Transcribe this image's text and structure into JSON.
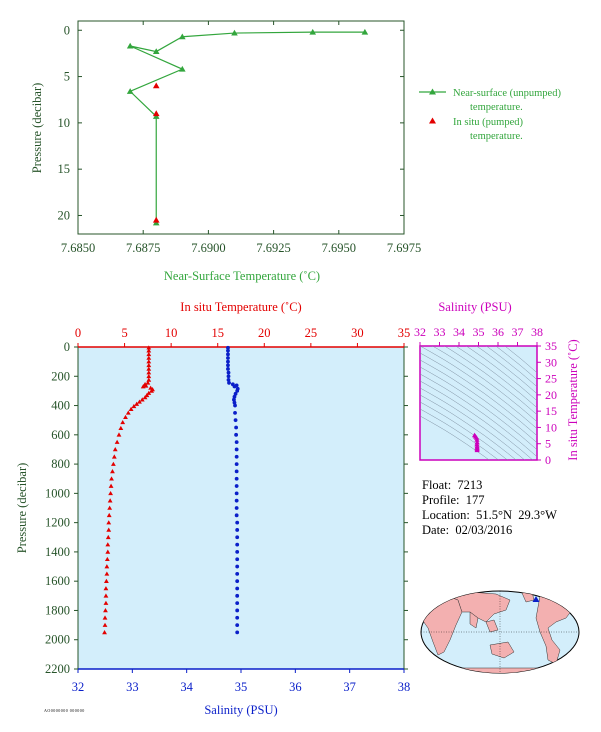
{
  "colors": {
    "green": "#33a63d",
    "axis_green": "#27542a",
    "red": "#e30000",
    "blue": "#0a1fc9",
    "magenta": "#cc00bb",
    "plot_bg": "#d3eefb",
    "land": "#f3b0b0",
    "ocean": "#d3eefb"
  },
  "info": {
    "float_label": "Float:",
    "float": "7213",
    "profile_label": "Profile:",
    "profile": "177",
    "location_label": "Location:",
    "location": "51.5°N  29.3°W",
    "date_label": "Date:",
    "date": "02/03/2016"
  },
  "tag": "AO0000000 000000",
  "chart_data": [
    {
      "id": "near-surface",
      "type": "line",
      "xlabel": "Near-Surface Temperature (˚C)",
      "ylabel": "Pressure (decibar)",
      "xlim": [
        7.685,
        7.6975
      ],
      "ylim": [
        22,
        -1
      ],
      "xticks": [
        7.685,
        7.6875,
        7.69,
        7.6925,
        7.695,
        7.6975
      ],
      "xtick_labels": [
        "7.6850",
        "7.6875",
        "7.6900",
        "7.6925",
        "7.6950",
        "7.6975"
      ],
      "yticks": [
        0,
        5,
        10,
        15,
        20
      ],
      "yticks_labels": [
        "0",
        "5",
        "10",
        "15",
        "20"
      ],
      "legend": [
        {
          "label_line1": "Near-surface (unpumped)",
          "label_line2": "temperature."
        },
        {
          "label_line1": "In situ (pumped)",
          "label_line2": "temperature."
        }
      ],
      "series": [
        {
          "name": "Near-surface (unpumped) temperature.",
          "marker": "triangle",
          "points": [
            [
              7.696,
              0.2
            ],
            [
              7.694,
              0.2
            ],
            [
              7.691,
              0.3
            ],
            [
              7.689,
              0.7
            ],
            [
              7.688,
              2.3
            ],
            [
              7.687,
              1.7
            ],
            [
              7.689,
              4.2
            ],
            [
              7.687,
              6.6
            ],
            [
              7.688,
              9.3
            ],
            [
              7.688,
              20.8
            ]
          ]
        },
        {
          "name": "In situ (pumped) temperature.",
          "marker": "triangle",
          "points": [
            [
              7.688,
              6.0
            ],
            [
              7.688,
              9.0
            ],
            [
              7.688,
              20.5
            ]
          ]
        }
      ]
    },
    {
      "id": "profile",
      "type": "scatter",
      "top_xlabel": "In situ Temperature (˚C)",
      "bottom_xlabel": "Salinity (PSU)",
      "ylabel": "Pressure (decibar)",
      "temp_lim": [
        0,
        35
      ],
      "sal_lim": [
        32,
        38
      ],
      "ylim": [
        2200,
        0
      ],
      "temp_ticks": [
        "0",
        "5",
        "10",
        "15",
        "20",
        "25",
        "30",
        "35"
      ],
      "sal_ticks": [
        "32",
        "33",
        "34",
        "35",
        "36",
        "37",
        "38"
      ],
      "y_ticks": [
        "0",
        "200",
        "400",
        "600",
        "800",
        "1000",
        "1200",
        "1400",
        "1600",
        "1800",
        "2000",
        "2200"
      ],
      "temperature_profile": [
        [
          7.6,
          5
        ],
        [
          7.6,
          25
        ],
        [
          7.6,
          50
        ],
        [
          7.6,
          75
        ],
        [
          7.6,
          100
        ],
        [
          7.6,
          125
        ],
        [
          7.6,
          150
        ],
        [
          7.6,
          175
        ],
        [
          7.6,
          200
        ],
        [
          7.6,
          225
        ],
        [
          7.5,
          245
        ],
        [
          7.2,
          255
        ],
        [
          7.3,
          265
        ],
        [
          7.0,
          270
        ],
        [
          7.8,
          280
        ],
        [
          8.0,
          290
        ],
        [
          7.9,
          300
        ],
        [
          7.6,
          315
        ],
        [
          7.4,
          330
        ],
        [
          7.2,
          345
        ],
        [
          6.9,
          360
        ],
        [
          6.6,
          375
        ],
        [
          6.3,
          390
        ],
        [
          6.0,
          405
        ],
        [
          5.7,
          425
        ],
        [
          5.4,
          450
        ],
        [
          5.1,
          480
        ],
        [
          4.8,
          515
        ],
        [
          4.6,
          555
        ],
        [
          4.4,
          600
        ],
        [
          4.2,
          650
        ],
        [
          4.0,
          700
        ],
        [
          3.9,
          750
        ],
        [
          3.8,
          800
        ],
        [
          3.7,
          850
        ],
        [
          3.6,
          900
        ],
        [
          3.55,
          950
        ],
        [
          3.5,
          1000
        ],
        [
          3.45,
          1050
        ],
        [
          3.4,
          1100
        ],
        [
          3.35,
          1150
        ],
        [
          3.3,
          1200
        ],
        [
          3.3,
          1250
        ],
        [
          3.25,
          1300
        ],
        [
          3.2,
          1350
        ],
        [
          3.2,
          1400
        ],
        [
          3.15,
          1450
        ],
        [
          3.1,
          1500
        ],
        [
          3.1,
          1550
        ],
        [
          3.05,
          1600
        ],
        [
          3.0,
          1650
        ],
        [
          3.0,
          1700
        ],
        [
          3.0,
          1750
        ],
        [
          2.95,
          1800
        ],
        [
          2.9,
          1850
        ],
        [
          2.9,
          1900
        ],
        [
          2.85,
          1950
        ]
      ],
      "salinity_profile": [
        [
          34.76,
          5
        ],
        [
          34.76,
          25
        ],
        [
          34.76,
          50
        ],
        [
          34.76,
          75
        ],
        [
          34.76,
          100
        ],
        [
          34.76,
          125
        ],
        [
          34.76,
          150
        ],
        [
          34.77,
          175
        ],
        [
          34.77,
          200
        ],
        [
          34.77,
          225
        ],
        [
          34.78,
          245
        ],
        [
          34.85,
          255
        ],
        [
          34.92,
          262
        ],
        [
          34.88,
          270
        ],
        [
          34.94,
          285
        ],
        [
          34.93,
          300
        ],
        [
          34.9,
          320
        ],
        [
          34.88,
          340
        ],
        [
          34.87,
          360
        ],
        [
          34.88,
          380
        ],
        [
          34.89,
          400
        ],
        [
          34.89,
          450
        ],
        [
          34.9,
          500
        ],
        [
          34.91,
          550
        ],
        [
          34.91,
          600
        ],
        [
          34.92,
          650
        ],
        [
          34.92,
          700
        ],
        [
          34.92,
          750
        ],
        [
          34.92,
          800
        ],
        [
          34.92,
          850
        ],
        [
          34.92,
          900
        ],
        [
          34.92,
          950
        ],
        [
          34.92,
          1000
        ],
        [
          34.92,
          1050
        ],
        [
          34.92,
          1100
        ],
        [
          34.92,
          1150
        ],
        [
          34.93,
          1200
        ],
        [
          34.93,
          1250
        ],
        [
          34.93,
          1300
        ],
        [
          34.93,
          1350
        ],
        [
          34.93,
          1400
        ],
        [
          34.93,
          1450
        ],
        [
          34.93,
          1500
        ],
        [
          34.93,
          1550
        ],
        [
          34.93,
          1600
        ],
        [
          34.93,
          1650
        ],
        [
          34.93,
          1700
        ],
        [
          34.93,
          1750
        ],
        [
          34.93,
          1800
        ],
        [
          34.93,
          1850
        ],
        [
          34.93,
          1900
        ],
        [
          34.93,
          1950
        ]
      ]
    },
    {
      "id": "ts-diagram",
      "type": "scatter",
      "title": "Salinity (PSU)",
      "ylabel": "In situ Temperature (˚C)",
      "xlim": [
        32,
        38
      ],
      "ylim": [
        0,
        35
      ],
      "xticks": [
        "32",
        "33",
        "34",
        "35",
        "36",
        "37",
        "38"
      ],
      "yticks": [
        "0",
        "5",
        "10",
        "15",
        "20",
        "25",
        "30",
        "35"
      ],
      "points": [
        [
          34.8,
          7.6
        ],
        [
          34.85,
          7.2
        ],
        [
          34.9,
          6.8
        ],
        [
          34.92,
          6.2
        ],
        [
          34.93,
          5.4
        ],
        [
          34.92,
          4.8
        ],
        [
          34.93,
          4.2
        ],
        [
          34.93,
          3.8
        ],
        [
          34.93,
          3.4
        ],
        [
          34.93,
          3.0
        ]
      ]
    }
  ]
}
